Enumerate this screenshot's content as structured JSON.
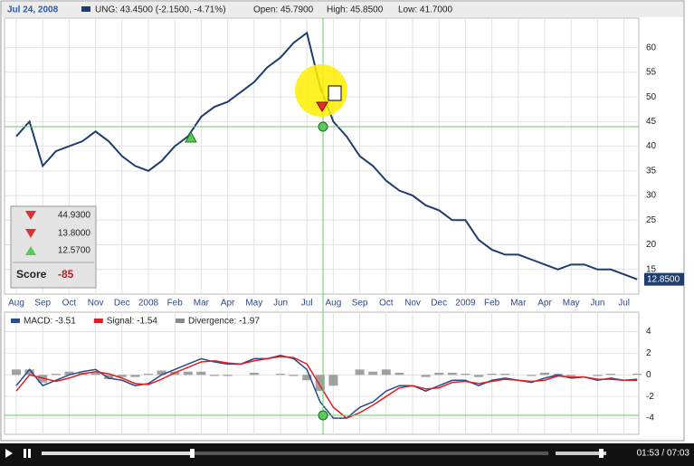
{
  "header": {
    "date": "Jul 24, 2008",
    "quote": "UNG: 43.4500 (-2.1500, -4.71%)",
    "open": "Open: 45.7900",
    "high": "High: 45.8500",
    "low": "Low: 41.7000"
  },
  "signals_box": {
    "items": [
      "44.9300",
      "13.8000",
      "12.5700"
    ],
    "score_label": "Score",
    "score": "-85"
  },
  "player": {
    "time": "01:53 / 07:03"
  },
  "chart_data": [
    {
      "type": "line",
      "color": "#1f3d6e",
      "grid": true,
      "last_label": "12.8500",
      "categories": [
        "Aug",
        null,
        "Sep",
        null,
        "Oct",
        null,
        "Nov",
        null,
        "Dec",
        null,
        "2008",
        null,
        "Feb",
        null,
        "Mar",
        null,
        "Apr",
        null,
        "May",
        null,
        "Jun",
        null,
        "Jul",
        null,
        "Aug",
        null,
        "Sep",
        null,
        "Oct",
        null,
        "Nov",
        null,
        "Dec",
        null,
        "2009",
        null,
        "Feb",
        null,
        "Mar",
        null,
        "Apr",
        null,
        "May",
        null,
        "Jun",
        null,
        "Jul",
        null
      ],
      "values": [
        42,
        45,
        36,
        39,
        40,
        41,
        43,
        41,
        38,
        36,
        35,
        37,
        40,
        42,
        46,
        48,
        49,
        51,
        53,
        56,
        58,
        61,
        63,
        52,
        45,
        42,
        38,
        36,
        33,
        31,
        30,
        28,
        27,
        25,
        25,
        21,
        19,
        18,
        18,
        17,
        16,
        15,
        16,
        16,
        15,
        15,
        14,
        13
      ],
      "ylim": [
        10,
        66
      ],
      "yticks": [
        15,
        20,
        25,
        30,
        35,
        40,
        45,
        50,
        55,
        60
      ]
    },
    {
      "type": "line",
      "grid": true,
      "ylim": [
        -5.5,
        5.8
      ],
      "yticks": [
        4,
        2,
        0,
        -2,
        -4
      ],
      "series": [
        {
          "name": "MACD: -3.51",
          "color": "#2a4a8a",
          "values": [
            -1,
            0.5,
            -1,
            -0.5,
            0,
            0.3,
            0.5,
            -0.3,
            -0.5,
            -1,
            -0.8,
            0,
            0.5,
            1,
            1.5,
            1.2,
            1,
            1,
            1.5,
            1.5,
            1.8,
            1.5,
            0.5,
            -2.5,
            -4,
            -4,
            -3,
            -2.5,
            -1.5,
            -1,
            -1,
            -1.5,
            -1,
            -0.5,
            -0.5,
            -1,
            -0.5,
            -0.3,
            -0.5,
            -0.7,
            -0.3,
            0,
            -0.3,
            -0.2,
            -0.5,
            -0.3,
            -0.5,
            -0.4
          ]
        },
        {
          "name": "Signal: -1.54",
          "color": "#e02020",
          "values": [
            -1.5,
            0,
            -0.3,
            -0.6,
            -0.3,
            0.1,
            0.3,
            0.1,
            -0.3,
            -0.8,
            -0.9,
            -0.4,
            0.2,
            0.7,
            1.2,
            1.3,
            1.1,
            1,
            1.3,
            1.5,
            1.7,
            1.6,
            1,
            -1,
            -3,
            -4,
            -3.5,
            -2.8,
            -2,
            -1.2,
            -1,
            -1.3,
            -1.2,
            -0.7,
            -0.6,
            -0.8,
            -0.6,
            -0.4,
            -0.5,
            -0.6,
            -0.5,
            -0.1,
            -0.2,
            -0.2,
            -0.4,
            -0.4,
            -0.5,
            -0.5
          ]
        },
        {
          "name": "Divergence: -1.97",
          "color": "#8a8a8a",
          "kind": "bar",
          "values": [
            0.5,
            0.5,
            -0.7,
            0.1,
            0.3,
            0.2,
            0.2,
            -0.4,
            -0.2,
            -0.2,
            0.1,
            0.4,
            0.3,
            0.3,
            0.3,
            -0.1,
            -0.1,
            0,
            0.2,
            0,
            0.1,
            -0.1,
            -0.5,
            -1.5,
            -1,
            0,
            0.5,
            0.3,
            0.5,
            0.2,
            0,
            -0.2,
            0.2,
            0.2,
            0.1,
            -0.2,
            0.1,
            0.1,
            0,
            -0.1,
            0.2,
            0.1,
            -0.1,
            0,
            -0.1,
            0.1,
            0,
            0.1
          ]
        }
      ]
    }
  ]
}
